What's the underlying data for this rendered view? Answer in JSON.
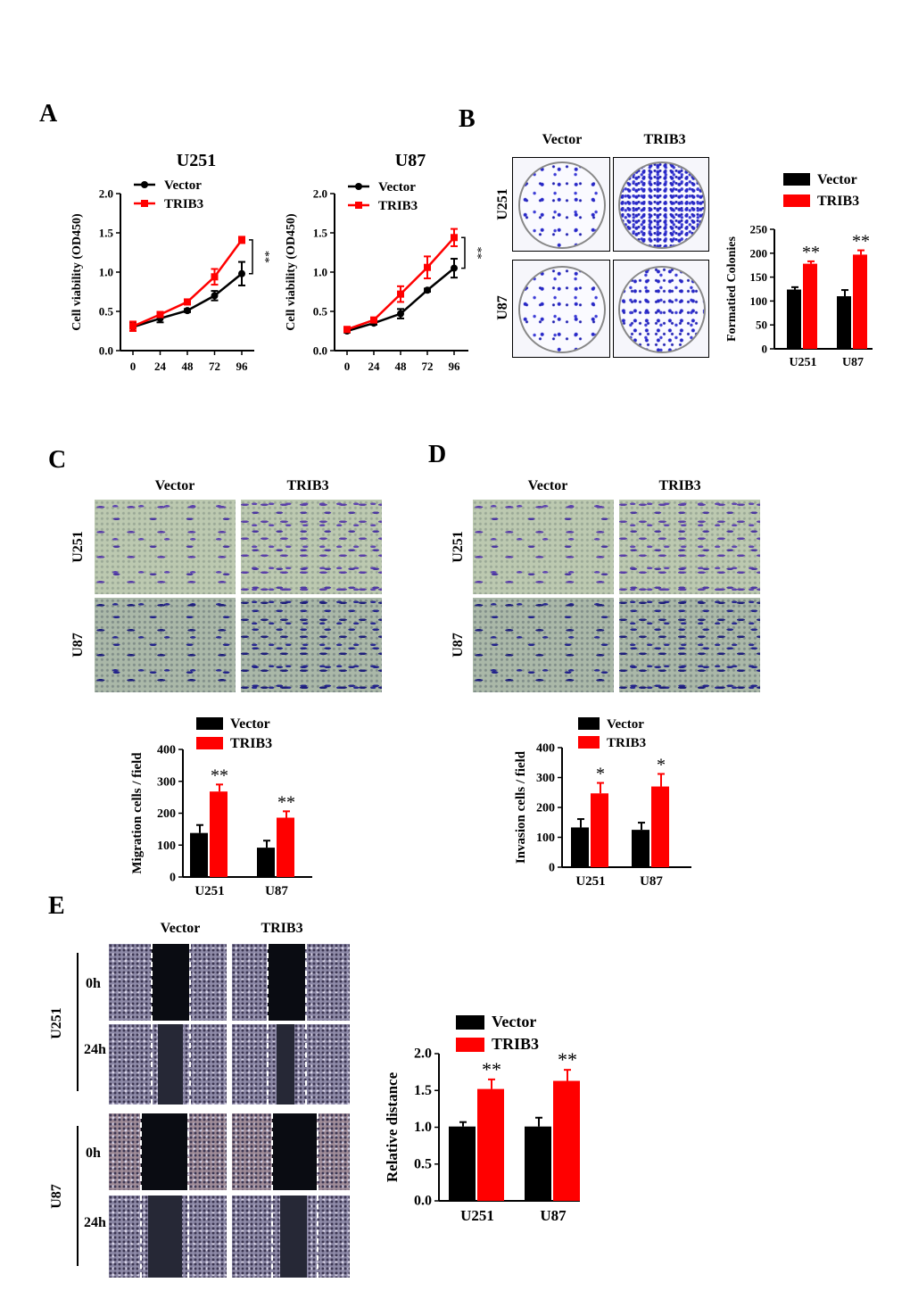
{
  "panels": {
    "A": "A",
    "B": "B",
    "C": "C",
    "D": "D",
    "E": "E"
  },
  "headers": {
    "vector": "Vector",
    "trib3": "TRIB3"
  },
  "rows": {
    "u251": "U251",
    "u87": "U87",
    "h0": "0h",
    "h24": "24h"
  },
  "colors": {
    "vector": "#000000",
    "trib3": "#ff0000"
  },
  "chart_data": [
    {
      "id": "A-U251",
      "type": "line",
      "title": "U251",
      "xlabel": "",
      "ylabel": "Cell viability (OD450)",
      "x": [
        0,
        24,
        48,
        72,
        96
      ],
      "ylim": [
        0.0,
        2.0
      ],
      "yticks": [
        "0.0",
        "0.5",
        "1.0",
        "1.5",
        "2.0"
      ],
      "series": [
        {
          "name": "Vector",
          "values": [
            0.3,
            0.41,
            0.51,
            0.7,
            0.98
          ],
          "errors": [
            0.05,
            0.05,
            0.02,
            0.06,
            0.15
          ]
        },
        {
          "name": "TRIB3",
          "values": [
            0.31,
            0.46,
            0.62,
            0.94,
            1.41
          ],
          "errors": [
            0.06,
            0.03,
            0.02,
            0.1,
            0.04
          ]
        }
      ],
      "annotation": "**"
    },
    {
      "id": "A-U87",
      "type": "line",
      "title": "U87",
      "xlabel": "",
      "ylabel": "Cell viability (OD450)",
      "x": [
        0,
        24,
        48,
        72,
        96
      ],
      "ylim": [
        0.0,
        2.0
      ],
      "yticks": [
        "0.0",
        "0.5",
        "1.0",
        "1.5",
        "2.0"
      ],
      "series": [
        {
          "name": "Vector",
          "values": [
            0.25,
            0.35,
            0.47,
            0.77,
            1.05
          ],
          "errors": [
            0.02,
            0.02,
            0.06,
            0.02,
            0.12
          ]
        },
        {
          "name": "TRIB3",
          "values": [
            0.27,
            0.39,
            0.72,
            1.06,
            1.44
          ],
          "errors": [
            0.02,
            0.03,
            0.1,
            0.14,
            0.11
          ]
        }
      ],
      "annotation": "**"
    },
    {
      "id": "B",
      "type": "bar",
      "title": "",
      "xlabel": "",
      "ylabel": "Formatied Colonies",
      "categories": [
        "U251",
        "U87"
      ],
      "ylim": [
        0,
        250
      ],
      "yticks": [
        "0",
        "50",
        "100",
        "150",
        "200",
        "250"
      ],
      "series": [
        {
          "name": "Vector",
          "values": [
            124,
            110
          ],
          "errors": [
            5,
            13
          ]
        },
        {
          "name": "TRIB3",
          "values": [
            178,
            197
          ],
          "errors": [
            5,
            9
          ]
        }
      ],
      "annotations": [
        "**",
        "**"
      ]
    },
    {
      "id": "C",
      "type": "bar",
      "title": "",
      "xlabel": "",
      "ylabel": "Migration cells / field",
      "categories": [
        "U251",
        "U87"
      ],
      "ylim": [
        0,
        400
      ],
      "yticks": [
        "0",
        "100",
        "200",
        "300",
        "400"
      ],
      "series": [
        {
          "name": "Vector",
          "values": [
            138,
            92
          ],
          "errors": [
            25,
            22
          ]
        },
        {
          "name": "TRIB3",
          "values": [
            268,
            186
          ],
          "errors": [
            22,
            20
          ]
        }
      ],
      "annotations": [
        "**",
        "**"
      ]
    },
    {
      "id": "D",
      "type": "bar",
      "title": "",
      "xlabel": "",
      "ylabel": "Invasion cells / field",
      "categories": [
        "U251",
        "U87"
      ],
      "ylim": [
        0,
        400
      ],
      "yticks": [
        "0",
        "100",
        "200",
        "300",
        "400"
      ],
      "series": [
        {
          "name": "Vector",
          "values": [
            133,
            125
          ],
          "errors": [
            28,
            24
          ]
        },
        {
          "name": "TRIB3",
          "values": [
            247,
            270
          ],
          "errors": [
            35,
            42
          ]
        }
      ],
      "annotations": [
        "*",
        "*"
      ]
    },
    {
      "id": "E",
      "type": "bar",
      "title": "",
      "xlabel": "",
      "ylabel": "Relative distance",
      "categories": [
        "U251",
        "U87"
      ],
      "ylim": [
        0.0,
        2.0
      ],
      "yticks": [
        "0.0",
        "0.5",
        "1.0",
        "1.5",
        "2.0"
      ],
      "series": [
        {
          "name": "Vector",
          "values": [
            1.01,
            1.01
          ],
          "errors": [
            0.06,
            0.12
          ]
        },
        {
          "name": "TRIB3",
          "values": [
            1.52,
            1.63
          ],
          "errors": [
            0.13,
            0.15
          ]
        }
      ],
      "annotations": [
        "**",
        "**"
      ]
    }
  ]
}
